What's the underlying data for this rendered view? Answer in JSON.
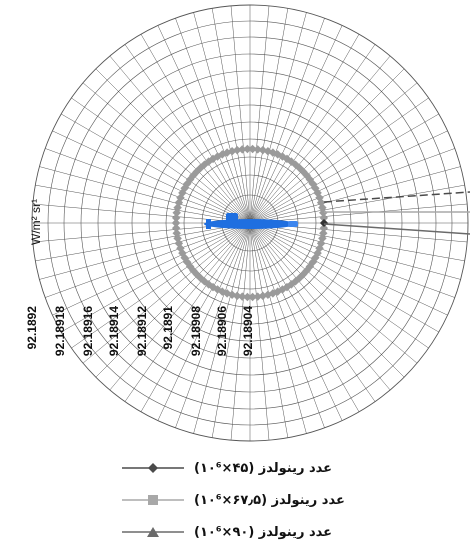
{
  "chart_data": {
    "type": "radar",
    "title": "",
    "unit_label": "W/m² sr¹",
    "radial_ticks": [
      "92.1892",
      "92.18918",
      "92.18916",
      "92.18914",
      "92.18912",
      "92.1891",
      "92.18908",
      "92.18906",
      "92.18904"
    ],
    "angular_divisions": 72,
    "legend_placement": "bottom",
    "series": [
      {
        "name": "عدد رینولدز (۴۵×۱۰⁶)",
        "color": "#4a4a4a",
        "marker": "diamond"
      },
      {
        "name": "عدد رینولدز (۶۷٫۵×۱۰⁶)",
        "color": "#a8a8a8",
        "marker": "square"
      },
      {
        "name": "عدد رینولدز (۹۰×۱۰⁶)",
        "color": "#6a6a6a",
        "marker": "triangle"
      }
    ]
  },
  "colors": {
    "grid": "#555555",
    "ring": "#9a9a9a",
    "submarine": "#1f6fe0"
  },
  "icons": {
    "center": "submarine-icon"
  }
}
